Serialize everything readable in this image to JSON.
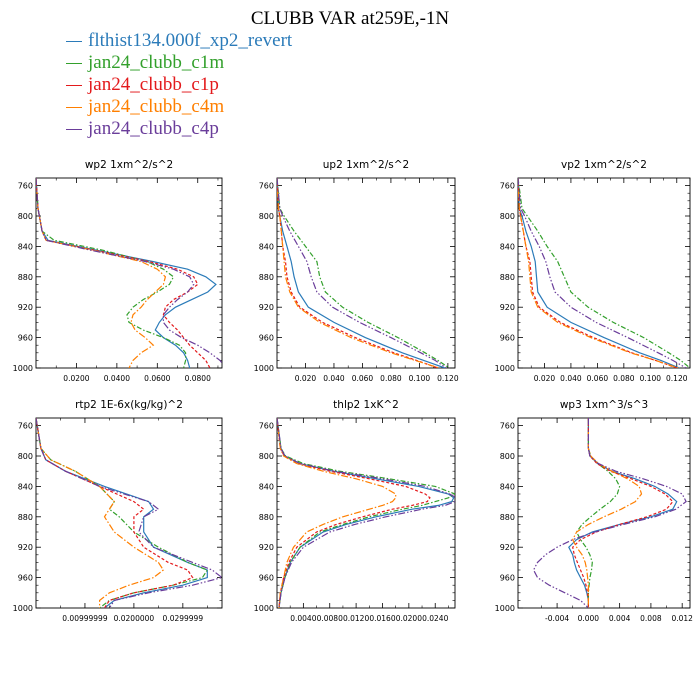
{
  "title": "CLUBB VAR at259E,-1N",
  "colors": [
    "#2b7bb9",
    "#33a02c",
    "#e31a1c",
    "#ff7f00",
    "#6a3d9a"
  ],
  "legend": [
    "flthist134.000f_xp2_revert",
    "jan24_clubb_c1m",
    "jan24_clubb_c1p",
    "jan24_clubb_c4m",
    "jan24_clubb_c4p"
  ],
  "chart_data": [
    {
      "type": "line",
      "title": "wp2   1xm^2/s^2",
      "y_ticks": [
        "760",
        "800",
        "840",
        "880",
        "920",
        "960",
        "1000"
      ],
      "ylim": [
        1000,
        750
      ],
      "xlim": [
        0,
        0.092
      ],
      "x_ticks": [
        0.02,
        0.04,
        0.06,
        0.08
      ],
      "x_tick_labels": [
        "0.0200",
        "0.0400",
        "0.0600",
        "0.0800"
      ],
      "y": [
        750,
        790,
        820,
        832,
        845,
        860,
        870,
        880,
        890,
        900,
        910,
        920,
        930,
        940,
        950,
        960,
        970,
        980,
        990,
        1000
      ],
      "series": [
        {
          "values": [
            0,
            0.001,
            0.003,
            0.006,
            0.03,
            0.058,
            0.075,
            0.084,
            0.089,
            0.085,
            0.077,
            0.069,
            0.064,
            0.061,
            0.059,
            0.063,
            0.069,
            0.073,
            0.075,
            0.076
          ]
        },
        {
          "values": [
            0,
            0.001,
            0.003,
            0.009,
            0.033,
            0.055,
            0.063,
            0.068,
            0.066,
            0.06,
            0.053,
            0.048,
            0.045,
            0.046,
            0.053,
            0.063,
            0.071,
            0.074,
            0.074,
            0.073
          ]
        },
        {
          "values": [
            0,
            0.001,
            0.003,
            0.005,
            0.029,
            0.056,
            0.07,
            0.078,
            0.08,
            0.075,
            0.068,
            0.064,
            0.063,
            0.066,
            0.07,
            0.073,
            0.076,
            0.08,
            0.084,
            0.086
          ]
        },
        {
          "values": [
            0,
            0.001,
            0.003,
            0.005,
            0.028,
            0.052,
            0.06,
            0.064,
            0.063,
            0.059,
            0.055,
            0.052,
            0.048,
            0.047,
            0.049,
            0.054,
            0.058,
            0.052,
            0.048,
            0.046
          ]
        },
        {
          "values": [
            0,
            0.001,
            0.003,
            0.005,
            0.027,
            0.054,
            0.068,
            0.076,
            0.078,
            0.075,
            0.07,
            0.066,
            0.063,
            0.063,
            0.066,
            0.072,
            0.08,
            0.086,
            0.091,
            0.094
          ]
        }
      ]
    },
    {
      "type": "line",
      "title": "up2   1xm^2/s^2",
      "y_ticks": [
        "760",
        "800",
        "840",
        "880",
        "920",
        "960",
        "1000"
      ],
      "ylim": [
        1000,
        750
      ],
      "xlim": [
        0,
        0.125
      ],
      "x_ticks": [
        0.02,
        0.04,
        0.06,
        0.08,
        0.1,
        0.12
      ],
      "x_tick_labels": [
        "0.020",
        "0.040",
        "0.060",
        "0.080",
        "0.100",
        "0.120"
      ],
      "y": [
        750,
        790,
        800,
        820,
        840,
        860,
        880,
        900,
        920,
        940,
        960,
        980,
        990,
        1000
      ],
      "series": [
        {
          "values": [
            0,
            0.001,
            0.002,
            0.004,
            0.007,
            0.01,
            0.012,
            0.015,
            0.022,
            0.04,
            0.062,
            0.088,
            0.103,
            0.118
          ]
        },
        {
          "values": [
            0,
            0.002,
            0.005,
            0.012,
            0.02,
            0.028,
            0.03,
            0.034,
            0.046,
            0.064,
            0.085,
            0.104,
            0.113,
            0.121
          ]
        },
        {
          "values": [
            0,
            0.001,
            0.002,
            0.003,
            0.004,
            0.006,
            0.007,
            0.01,
            0.016,
            0.032,
            0.055,
            0.082,
            0.098,
            0.113
          ]
        },
        {
          "values": [
            0,
            0.001,
            0.002,
            0.003,
            0.004,
            0.005,
            0.006,
            0.009,
            0.015,
            0.03,
            0.052,
            0.08,
            0.097,
            0.114
          ]
        },
        {
          "values": [
            0,
            0.002,
            0.004,
            0.009,
            0.015,
            0.021,
            0.024,
            0.028,
            0.039,
            0.058,
            0.08,
            0.101,
            0.111,
            0.119
          ]
        }
      ]
    },
    {
      "type": "line",
      "title": "vp2   1xm^2/s^2",
      "y_ticks": [
        "760",
        "800",
        "840",
        "880",
        "920",
        "960",
        "1000"
      ],
      "ylim": [
        1000,
        750
      ],
      "xlim": [
        0,
        0.13
      ],
      "x_ticks": [
        0.02,
        0.04,
        0.06,
        0.08,
        0.1,
        0.12
      ],
      "x_tick_labels": [
        "0.020",
        "0.040",
        "0.060",
        "0.080",
        "0.100",
        "0.120"
      ],
      "y": [
        750,
        790,
        800,
        820,
        840,
        860,
        880,
        900,
        920,
        940,
        960,
        980,
        990,
        1000
      ],
      "series": [
        {
          "values": [
            0,
            0.001,
            0.003,
            0.006,
            0.01,
            0.013,
            0.014,
            0.015,
            0.022,
            0.04,
            0.065,
            0.092,
            0.108,
            0.122
          ]
        },
        {
          "values": [
            0,
            0.003,
            0.007,
            0.015,
            0.022,
            0.03,
            0.035,
            0.04,
            0.053,
            0.072,
            0.095,
            0.114,
            0.123,
            0.13
          ]
        },
        {
          "values": [
            0,
            0.001,
            0.002,
            0.004,
            0.006,
            0.009,
            0.01,
            0.011,
            0.016,
            0.032,
            0.057,
            0.086,
            0.104,
            0.12
          ]
        },
        {
          "values": [
            0,
            0.001,
            0.002,
            0.004,
            0.006,
            0.008,
            0.009,
            0.01,
            0.015,
            0.03,
            0.055,
            0.085,
            0.104,
            0.121
          ]
        },
        {
          "values": [
            0,
            0.002,
            0.005,
            0.01,
            0.016,
            0.021,
            0.024,
            0.028,
            0.04,
            0.059,
            0.083,
            0.106,
            0.117,
            0.127
          ]
        }
      ]
    },
    {
      "type": "line",
      "title": "rtp2   1E-6x(kg/kg)^2",
      "y_ticks": [
        "760",
        "800",
        "840",
        "880",
        "920",
        "960",
        "1000"
      ],
      "ylim": [
        1000,
        750
      ],
      "xlim": [
        0,
        0.038
      ],
      "x_ticks": [
        0.01,
        0.02,
        0.03
      ],
      "x_tick_labels": [
        "0.00999999",
        "0.0200000",
        "0.0299999"
      ],
      "y": [
        750,
        790,
        805,
        820,
        840,
        860,
        870,
        880,
        900,
        920,
        940,
        950,
        960,
        970,
        980,
        990,
        1000
      ],
      "series": [
        {
          "values": [
            0,
            0.001,
            0.002,
            0.006,
            0.014,
            0.023,
            0.024,
            0.022,
            0.022,
            0.024,
            0.031,
            0.035,
            0.035,
            0.03,
            0.022,
            0.016,
            0.014
          ]
        },
        {
          "values": [
            0,
            0.001,
            0.003,
            0.008,
            0.013,
            0.016,
            0.015,
            0.017,
            0.02,
            0.025,
            0.031,
            0.035,
            0.034,
            0.028,
            0.02,
            0.015,
            0.013
          ]
        },
        {
          "values": [
            0,
            0.001,
            0.002,
            0.006,
            0.013,
            0.02,
            0.022,
            0.02,
            0.02,
            0.022,
            0.027,
            0.031,
            0.032,
            0.028,
            0.02,
            0.015,
            0.014
          ]
        },
        {
          "values": [
            0,
            0.001,
            0.003,
            0.008,
            0.013,
            0.016,
            0.015,
            0.014,
            0.016,
            0.02,
            0.025,
            0.026,
            0.024,
            0.019,
            0.015,
            0.013,
            0.013
          ]
        },
        {
          "values": [
            0,
            0.001,
            0.002,
            0.006,
            0.013,
            0.023,
            0.025,
            0.022,
            0.021,
            0.024,
            0.032,
            0.036,
            0.038,
            0.032,
            0.023,
            0.016,
            0.015
          ]
        }
      ]
    },
    {
      "type": "line",
      "title": "thlp2   1xK^2",
      "y_ticks": [
        "760",
        "800",
        "840",
        "880",
        "920",
        "960",
        "1000"
      ],
      "ylim": [
        1000,
        750
      ],
      "xlim": [
        0,
        0.027
      ],
      "x_ticks": [
        0.004,
        0.008,
        0.012,
        0.016,
        0.02,
        0.024
      ],
      "x_tick_labels": [
        "0.0040",
        "0.0080",
        "0.0120",
        "0.0160",
        "0.0200",
        "0.0240"
      ],
      "y": [
        750,
        790,
        800,
        810,
        820,
        830,
        840,
        850,
        855,
        860,
        865,
        870,
        880,
        890,
        900,
        920,
        940,
        960,
        980,
        1000
      ],
      "series": [
        {
          "values": [
            0,
            0.0006,
            0.0012,
            0.0035,
            0.0085,
            0.015,
            0.0215,
            0.026,
            0.0268,
            0.0265,
            0.0245,
            0.0205,
            0.015,
            0.0105,
            0.007,
            0.0035,
            0.002,
            0.0012,
            0.0006,
            0.0003
          ]
        },
        {
          "values": [
            0,
            0.0006,
            0.0013,
            0.004,
            0.0095,
            0.017,
            0.024,
            0.027,
            0.026,
            0.024,
            0.022,
            0.019,
            0.014,
            0.01,
            0.0065,
            0.0035,
            0.002,
            0.0012,
            0.0006,
            0.0003
          ]
        },
        {
          "values": [
            0,
            0.0005,
            0.0011,
            0.0033,
            0.008,
            0.014,
            0.0195,
            0.0225,
            0.0232,
            0.0228,
            0.0205,
            0.0175,
            0.013,
            0.009,
            0.006,
            0.003,
            0.0018,
            0.001,
            0.0005,
            0.0003
          ]
        },
        {
          "values": [
            0,
            0.0005,
            0.001,
            0.003,
            0.007,
            0.012,
            0.016,
            0.018,
            0.018,
            0.0175,
            0.016,
            0.014,
            0.01,
            0.007,
            0.0045,
            0.0025,
            0.0015,
            0.001,
            0.0005,
            0.0003
          ]
        },
        {
          "values": [
            0,
            0.0006,
            0.0012,
            0.0035,
            0.0088,
            0.016,
            0.0225,
            0.0262,
            0.0272,
            0.027,
            0.0255,
            0.022,
            0.0165,
            0.0118,
            0.008,
            0.004,
            0.0022,
            0.0012,
            0.0006,
            0.0003
          ]
        }
      ]
    },
    {
      "type": "line",
      "title": "wp3   1xm^3/s^3",
      "y_ticks": [
        "760",
        "800",
        "840",
        "880",
        "920",
        "960",
        "1000"
      ],
      "ylim": [
        1000,
        750
      ],
      "xlim": [
        -0.009,
        0.013
      ],
      "x_ticks": [
        -0.004,
        0.0,
        0.004,
        0.008,
        0.012
      ],
      "x_tick_labels": [
        "-0.004",
        "0.000",
        "0.004",
        "0.008",
        "0.012"
      ],
      "y": [
        750,
        790,
        800,
        810,
        820,
        830,
        840,
        850,
        860,
        870,
        880,
        890,
        900,
        910,
        920,
        930,
        940,
        950,
        960,
        970,
        980,
        990,
        1000
      ],
      "series": [
        {
          "values": [
            0,
            0,
            0.0002,
            0.0012,
            0.003,
            0.006,
            0.0085,
            0.0102,
            0.0113,
            0.0108,
            0.008,
            0.004,
            0.0005,
            -0.0015,
            -0.0025,
            -0.002,
            -0.0018,
            -0.0015,
            -0.001,
            -0.0005,
            -0.0002,
            0,
            0
          ]
        },
        {
          "values": [
            0,
            0,
            0.0003,
            0.0012,
            0.0025,
            0.0035,
            0.004,
            0.0037,
            0.0028,
            0.0015,
            0.0003,
            -0.0008,
            -0.0015,
            -0.001,
            -0.0003,
            0.0002,
            0.0005,
            0.0004,
            0.0002,
            0.0001,
            0,
            0,
            0
          ]
        },
        {
          "values": [
            0,
            0,
            0.0002,
            0.0011,
            0.0028,
            0.0055,
            0.008,
            0.0098,
            0.0108,
            0.01,
            0.0075,
            0.004,
            0.001,
            -0.001,
            -0.002,
            -0.0018,
            -0.0014,
            -0.001,
            -0.0006,
            -0.0003,
            -0.0001,
            0,
            0
          ]
        },
        {
          "values": [
            0,
            0,
            0.0003,
            0.0013,
            0.003,
            0.005,
            0.0065,
            0.0068,
            0.006,
            0.0042,
            0.002,
            0.0,
            -0.0015,
            -0.002,
            -0.0015,
            -0.0008,
            -0.0004,
            -0.0002,
            -0.0001,
            0,
            0,
            0,
            0
          ]
        },
        {
          "values": [
            0,
            0,
            0.0002,
            0.0013,
            0.0035,
            0.007,
            0.01,
            0.012,
            0.0125,
            0.0112,
            0.0085,
            0.0045,
            0.0008,
            -0.002,
            -0.004,
            -0.0055,
            -0.0065,
            -0.007,
            -0.0065,
            -0.005,
            -0.003,
            -0.001,
            0
          ]
        }
      ]
    }
  ]
}
